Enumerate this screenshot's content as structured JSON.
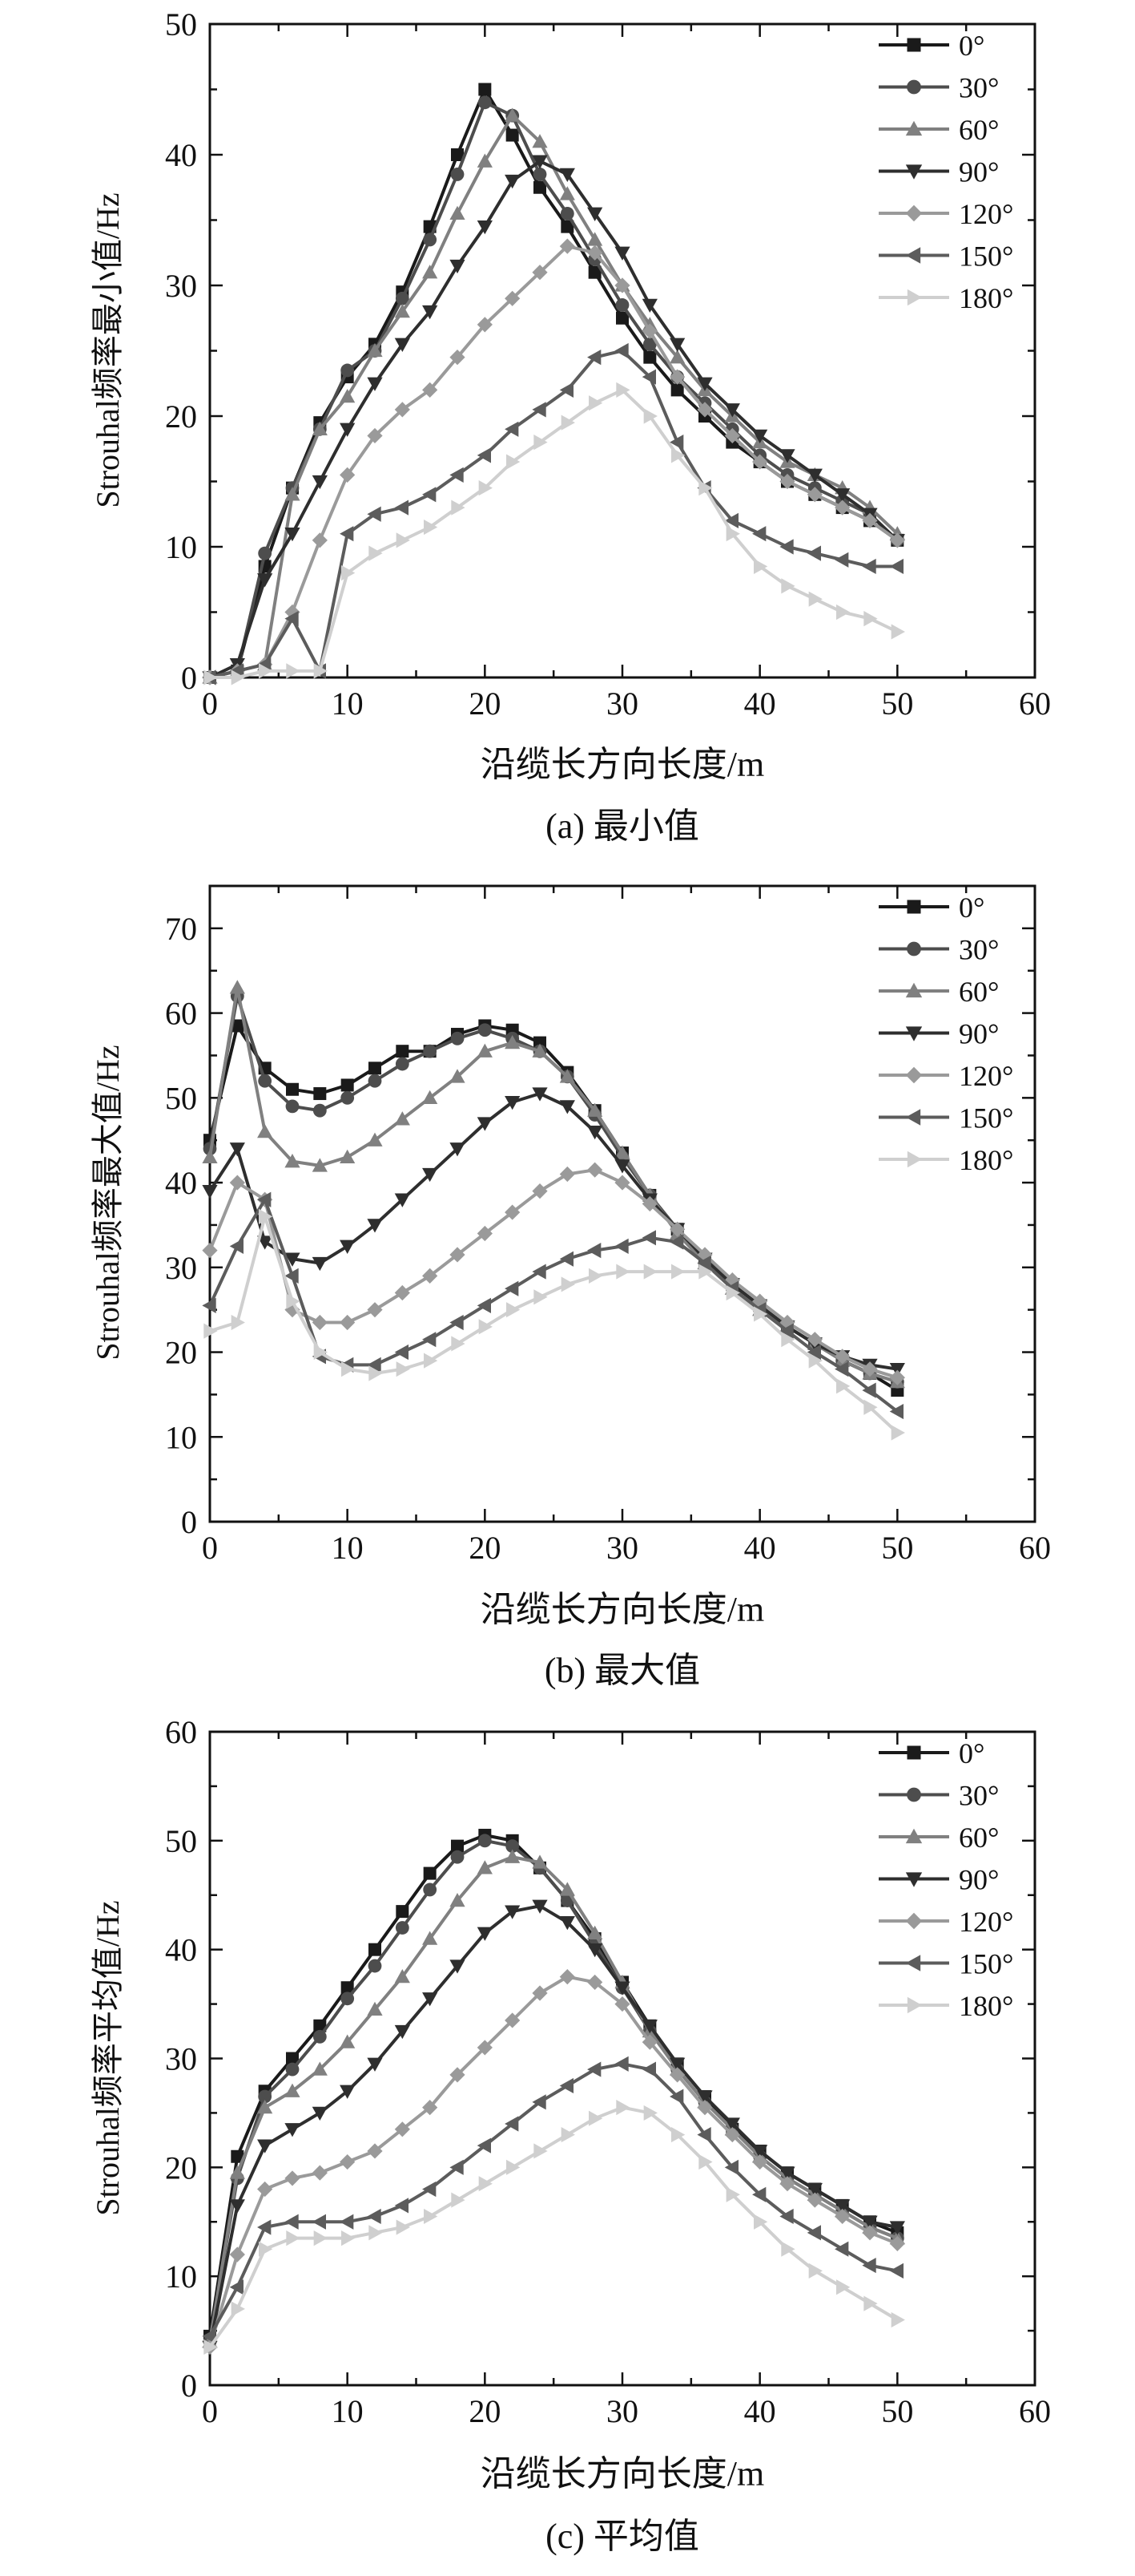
{
  "chart_data": [
    {
      "type": "line",
      "caption": "(a) 最小值",
      "xlabel": "沿缆长方向长度/m",
      "ylabel": "Strouhal频率最小值/Hz",
      "xlim": [
        0,
        60
      ],
      "ylim": [
        0,
        50
      ],
      "xticks": [
        0,
        10,
        20,
        30,
        40,
        50,
        60
      ],
      "yticks": [
        0,
        10,
        20,
        30,
        40,
        50
      ],
      "x": [
        0,
        2,
        4,
        6,
        8,
        10,
        12,
        14,
        16,
        18,
        20,
        22,
        24,
        26,
        28,
        30,
        32,
        34,
        36,
        38,
        40,
        42,
        44,
        46,
        48,
        50
      ],
      "series": [
        {
          "name": "0°",
          "values": [
            0,
            0.5,
            8.5,
            14.5,
            19.5,
            23,
            25.5,
            29.5,
            34.5,
            40,
            45,
            41.5,
            37.5,
            34.5,
            31,
            27.5,
            24.5,
            22,
            20,
            18,
            16.5,
            15,
            14,
            13,
            12,
            10.5
          ]
        },
        {
          "name": "30°",
          "values": [
            0,
            0.5,
            9.5,
            14.5,
            19,
            23.5,
            25,
            29,
            33.5,
            38.5,
            44,
            43,
            38.5,
            35.5,
            32,
            28.5,
            25.5,
            23,
            21,
            19,
            17,
            15.5,
            14.5,
            13.5,
            12.5,
            10.5
          ]
        },
        {
          "name": "60°",
          "values": [
            0,
            0.5,
            1,
            14,
            19,
            21.5,
            25,
            28,
            31,
            35.5,
            39.5,
            43,
            41,
            37,
            33.5,
            30,
            27,
            24.5,
            22,
            20,
            18,
            16.5,
            15.5,
            14.5,
            13,
            11
          ]
        },
        {
          "name": "90°",
          "values": [
            0,
            1,
            7.5,
            11,
            15,
            19,
            22.5,
            25.5,
            28,
            31.5,
            34.5,
            38,
            39.5,
            38.5,
            35.5,
            32.5,
            28.5,
            25.5,
            22.5,
            20.5,
            18.5,
            17,
            15.5,
            14,
            12.5,
            10.5
          ]
        },
        {
          "name": "120°",
          "values": [
            0,
            0.5,
            1,
            5,
            10.5,
            15.5,
            18.5,
            20.5,
            22,
            24.5,
            27,
            29,
            31,
            33,
            32.5,
            30,
            26.5,
            23,
            20.5,
            18.5,
            16.5,
            15,
            14,
            13,
            12,
            10.5
          ]
        },
        {
          "name": "150°",
          "values": [
            0,
            0.5,
            1,
            4.5,
            0.5,
            11,
            12.5,
            13,
            14,
            15.5,
            17,
            19,
            20.5,
            22,
            24.5,
            25,
            23,
            18,
            14.5,
            12,
            11,
            10,
            9.5,
            9,
            8.5,
            8.5
          ]
        },
        {
          "name": "180°",
          "values": [
            0,
            0,
            0.5,
            0.5,
            0.5,
            8,
            9.5,
            10.5,
            11.5,
            13,
            14.5,
            16.5,
            18,
            19.5,
            21,
            22,
            20,
            17,
            14.5,
            11,
            8.5,
            7,
            6,
            5,
            4.5,
            3.5
          ]
        }
      ]
    },
    {
      "type": "line",
      "caption": "(b) 最大值",
      "xlabel": "沿缆长方向长度/m",
      "ylabel": "Strouhal频率最大值/Hz",
      "xlim": [
        0,
        60
      ],
      "ylim": [
        0,
        75
      ],
      "xticks": [
        0,
        10,
        20,
        30,
        40,
        50,
        60
      ],
      "yticks": [
        0,
        10,
        20,
        30,
        40,
        50,
        60,
        70
      ],
      "x": [
        0,
        2,
        4,
        6,
        8,
        10,
        12,
        14,
        16,
        18,
        20,
        22,
        24,
        26,
        28,
        30,
        32,
        34,
        36,
        38,
        40,
        42,
        44,
        46,
        48,
        50
      ],
      "series": [
        {
          "name": "0°",
          "values": [
            45,
            58.5,
            53.5,
            51,
            50.5,
            51.5,
            53.5,
            55.5,
            55.5,
            57.5,
            58.5,
            58,
            56.5,
            53,
            48.5,
            43.5,
            38.5,
            34.5,
            30.5,
            28,
            25.5,
            23,
            21,
            19,
            17.5,
            15.5
          ]
        },
        {
          "name": "30°",
          "values": [
            44,
            62,
            52,
            49,
            48.5,
            50,
            52,
            54,
            55.5,
            57,
            58,
            57,
            55.5,
            52.5,
            48,
            43,
            38.5,
            34.5,
            30.5,
            27.5,
            25,
            23,
            21,
            19,
            17.5,
            16.5
          ]
        },
        {
          "name": "60°",
          "values": [
            43,
            63,
            46,
            42.5,
            42,
            43,
            45,
            47.5,
            50,
            52.5,
            55.5,
            56.5,
            55.5,
            52.5,
            48.5,
            43.5,
            38.5,
            34,
            30.5,
            27.5,
            25,
            23,
            21,
            19,
            17.5,
            16.5
          ]
        },
        {
          "name": "90°",
          "values": [
            39,
            44,
            33,
            31,
            30.5,
            32.5,
            35,
            38,
            41,
            44,
            47,
            49.5,
            50.5,
            49,
            46,
            42,
            38,
            34.5,
            31,
            28,
            25.5,
            23,
            21,
            19.5,
            18.5,
            18
          ]
        },
        {
          "name": "120°",
          "values": [
            32,
            40,
            38,
            25,
            23.5,
            23.5,
            25,
            27,
            29,
            31.5,
            34,
            36.5,
            39,
            41,
            41.5,
            40,
            37.5,
            34.5,
            31.5,
            28.5,
            26,
            23.5,
            21.5,
            19.5,
            18,
            17
          ]
        },
        {
          "name": "150°",
          "values": [
            25.5,
            32.5,
            38,
            29,
            19.5,
            18.5,
            18.5,
            20,
            21.5,
            23.5,
            25.5,
            27.5,
            29.5,
            31,
            32,
            32.5,
            33.5,
            33,
            30.5,
            27.5,
            25,
            22.5,
            20,
            18,
            15.5,
            13
          ]
        },
        {
          "name": "180°",
          "values": [
            22.5,
            23.5,
            36,
            26,
            20,
            18,
            17.5,
            18,
            19,
            21,
            23,
            25,
            26.5,
            28,
            29,
            29.5,
            29.5,
            29.5,
            29.5,
            27,
            24.5,
            21.5,
            19,
            16,
            13.5,
            10.5
          ]
        }
      ]
    },
    {
      "type": "line",
      "caption": "(c) 平均值",
      "xlabel": "沿缆长方向长度/m",
      "ylabel": "Strouhal频率平均值/Hz",
      "xlim": [
        0,
        60
      ],
      "ylim": [
        0,
        60
      ],
      "xticks": [
        0,
        10,
        20,
        30,
        40,
        50,
        60
      ],
      "yticks": [
        0,
        10,
        20,
        30,
        40,
        50,
        60
      ],
      "x": [
        0,
        2,
        4,
        6,
        8,
        10,
        12,
        14,
        16,
        18,
        20,
        22,
        24,
        26,
        28,
        30,
        32,
        34,
        36,
        38,
        40,
        42,
        44,
        46,
        48,
        50
      ],
      "series": [
        {
          "name": "0°",
          "values": [
            4.5,
            21,
            27,
            30,
            33,
            36.5,
            40,
            43.5,
            47,
            49.5,
            50.5,
            50,
            47.5,
            44.5,
            41,
            37,
            33,
            29.5,
            26.5,
            23.5,
            21.5,
            19.5,
            18,
            16.5,
            15,
            14
          ]
        },
        {
          "name": "30°",
          "values": [
            4,
            19,
            26.5,
            29,
            32,
            35.5,
            38.5,
            42,
            45.5,
            48.5,
            50,
            49.5,
            47.5,
            44.5,
            40.5,
            36.5,
            32.5,
            29,
            26,
            23.5,
            21,
            19,
            17.5,
            16,
            14.5,
            13.5
          ]
        },
        {
          "name": "60°",
          "values": [
            4,
            19.5,
            25.5,
            27,
            29,
            31.5,
            34.5,
            37.5,
            41,
            44.5,
            47.5,
            48.5,
            48,
            45.5,
            41.5,
            37,
            32.5,
            29,
            26,
            23.5,
            21,
            19,
            17.5,
            16,
            14.5,
            13.5
          ]
        },
        {
          "name": "90°",
          "values": [
            3.5,
            16.5,
            22,
            23.5,
            25,
            27,
            29.5,
            32.5,
            35.5,
            38.5,
            41.5,
            43.5,
            44,
            42.5,
            40,
            36.5,
            33,
            29.5,
            26.5,
            24,
            21.5,
            19.5,
            18,
            16.5,
            15,
            14.5
          ]
        },
        {
          "name": "120°",
          "values": [
            3.5,
            12,
            18,
            19,
            19.5,
            20.5,
            21.5,
            23.5,
            25.5,
            28.5,
            31,
            33.5,
            36,
            37.5,
            37,
            35,
            31.5,
            28.5,
            25.5,
            23,
            20.5,
            18.5,
            17,
            15.5,
            14,
            13
          ]
        },
        {
          "name": "150°",
          "values": [
            4.5,
            9,
            14.5,
            15,
            15,
            15,
            15.5,
            16.5,
            18,
            20,
            22,
            24,
            26,
            27.5,
            29,
            29.5,
            29,
            26.5,
            23,
            20,
            17.5,
            15.5,
            14,
            12.5,
            11,
            10.5
          ]
        },
        {
          "name": "180°",
          "values": [
            3.5,
            7,
            12.5,
            13.5,
            13.5,
            13.5,
            14,
            14.5,
            15.5,
            17,
            18.5,
            20,
            21.5,
            23,
            24.5,
            25.5,
            25,
            23,
            20.5,
            17.5,
            15,
            12.5,
            10.5,
            9,
            7.5,
            6
          ]
        }
      ]
    }
  ]
}
